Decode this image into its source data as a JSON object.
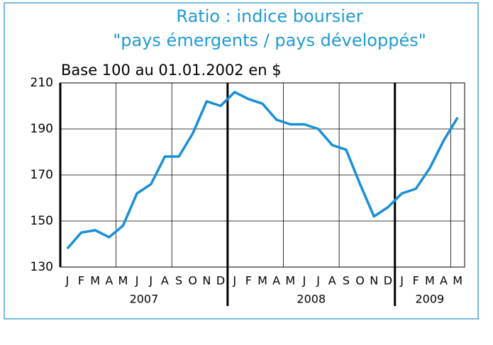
{
  "chart_data": {
    "type": "line",
    "title": [
      "Ratio : indice boursier",
      "\"pays émergents / pays développés\""
    ],
    "subtitle": "Base 100 au 01.01.2002 en $",
    "groups": [
      {
        "label": "2007",
        "categories": [
          "J",
          "F",
          "M",
          "A",
          "M",
          "J",
          "J",
          "A",
          "S",
          "O",
          "N",
          "D"
        ]
      },
      {
        "label": "2008",
        "categories": [
          "J",
          "F",
          "M",
          "A",
          "M",
          "J",
          "J",
          "A",
          "S",
          "O",
          "N",
          "D"
        ]
      },
      {
        "label": "2009",
        "categories": [
          "J",
          "F",
          "M",
          "A",
          "M"
        ]
      }
    ],
    "values": [
      138,
      145,
      146,
      143,
      148,
      162,
      166,
      178,
      178,
      188,
      202,
      200,
      206,
      203,
      201,
      194,
      192,
      192,
      190,
      183,
      181,
      166,
      152,
      156,
      162,
      164,
      173,
      185,
      195
    ],
    "color": "#1a8fd6",
    "ylim": [
      130,
      210
    ],
    "yticks": [
      130,
      150,
      170,
      190,
      210
    ],
    "grid": true
  }
}
